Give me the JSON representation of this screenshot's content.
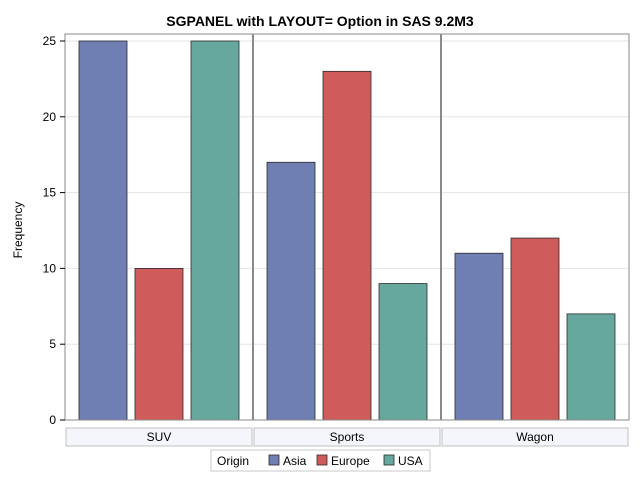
{
  "chart_data": {
    "type": "bar",
    "title": "SGPANEL with LAYOUT= Option in SAS 9.2M3",
    "ylabel": "Frequency",
    "ylim": [
      0,
      25
    ],
    "yticks": [
      0,
      5,
      10,
      15,
      20,
      25
    ],
    "grid": true,
    "panels": [
      "SUV",
      "Sports",
      "Wagon"
    ],
    "legend": {
      "title": "Origin",
      "position": "bottom-center"
    },
    "series": [
      {
        "name": "Asia",
        "color": "#6f7eb3",
        "values": [
          25,
          17,
          11
        ]
      },
      {
        "name": "Europe",
        "color": "#d05b5b",
        "values": [
          10,
          23,
          12
        ]
      },
      {
        "name": "USA",
        "color": "#66a89e",
        "values": [
          25,
          9,
          7
        ]
      }
    ]
  }
}
